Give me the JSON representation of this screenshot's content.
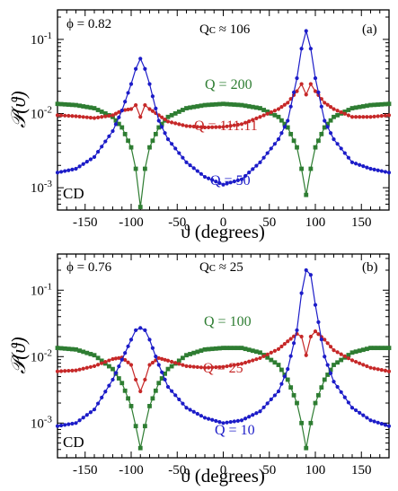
{
  "chart_data": [
    {
      "type": "line",
      "panel_label": "(a)",
      "annotations": {
        "phi": "ϕ = 0.82",
        "qc": "Qᴄ ≈ 106",
        "method": "CD"
      },
      "xlabel": "ϑ (degrees)",
      "ylabel": "𝒫(ϑ)",
      "xlim": [
        -180,
        180
      ],
      "ylog": true,
      "ylim": [
        0.0005,
        0.25
      ],
      "xticks": [
        -150,
        -100,
        -50,
        0,
        50,
        100,
        150
      ],
      "xtick_labels": [
        "-150",
        "-100",
        "-50",
        "0",
        "50",
        "100",
        "150"
      ],
      "yticks": [
        0.001,
        0.01,
        0.1
      ],
      "ytick_labels": [
        "10-3",
        "10-2",
        "10-1"
      ],
      "series": [
        {
          "name": "Q = 200",
          "color": "#2e7d32",
          "marker": "square",
          "x": [
            -180,
            -160,
            -140,
            -120,
            -110,
            -100,
            -95,
            -90,
            -85,
            -80,
            -70,
            -60,
            -40,
            -20,
            0,
            20,
            40,
            60,
            70,
            80,
            85,
            90,
            95,
            100,
            110,
            120,
            140,
            160,
            180
          ],
          "y": [
            0.0135,
            0.013,
            0.0118,
            0.009,
            0.0065,
            0.0035,
            0.0018,
            0.00055,
            0.0018,
            0.0035,
            0.0065,
            0.009,
            0.0118,
            0.013,
            0.0135,
            0.013,
            0.0118,
            0.009,
            0.0065,
            0.0035,
            0.0018,
            0.0008,
            0.0018,
            0.0035,
            0.0065,
            0.009,
            0.0118,
            0.013,
            0.0135
          ]
        },
        {
          "name": "Q = 111.11",
          "color": "#c62828",
          "marker": "circle",
          "x": [
            -180,
            -160,
            -140,
            -120,
            -110,
            -100,
            -95,
            -90,
            -85,
            -80,
            -70,
            -60,
            -40,
            -20,
            0,
            20,
            40,
            60,
            70,
            80,
            85,
            90,
            95,
            100,
            110,
            120,
            140,
            160,
            180
          ],
          "y": [
            0.0095,
            0.0092,
            0.0087,
            0.0095,
            0.011,
            0.0115,
            0.013,
            0.009,
            0.013,
            0.0115,
            0.0095,
            0.0078,
            0.0068,
            0.0065,
            0.0066,
            0.0072,
            0.009,
            0.0115,
            0.014,
            0.02,
            0.025,
            0.018,
            0.025,
            0.02,
            0.014,
            0.0115,
            0.009,
            0.009,
            0.0095
          ]
        },
        {
          "name": "Q = 50",
          "color": "#1c1cc8",
          "marker": "circle",
          "x": [
            -180,
            -160,
            -140,
            -120,
            -110,
            -100,
            -95,
            -90,
            -85,
            -80,
            -70,
            -60,
            -40,
            -20,
            0,
            20,
            40,
            60,
            70,
            80,
            85,
            90,
            95,
            100,
            110,
            120,
            140,
            160,
            180
          ],
          "y": [
            0.0016,
            0.0018,
            0.0026,
            0.0058,
            0.011,
            0.025,
            0.04,
            0.055,
            0.04,
            0.025,
            0.008,
            0.0045,
            0.0022,
            0.0014,
            0.0011,
            0.0013,
            0.0022,
            0.0045,
            0.008,
            0.03,
            0.075,
            0.13,
            0.075,
            0.03,
            0.008,
            0.0045,
            0.0022,
            0.0018,
            0.0016
          ]
        }
      ]
    },
    {
      "type": "line",
      "panel_label": "(b)",
      "annotations": {
        "phi": "ϕ = 0.76",
        "qc": "Qᴄ ≈ 25",
        "method": "CD"
      },
      "xlabel": "ϑ (degrees)",
      "ylabel": "𝒫(ϑ)",
      "xlim": [
        -180,
        180
      ],
      "ylog": true,
      "ylim": [
        0.0003,
        0.35
      ],
      "xticks": [
        -150,
        -100,
        -50,
        0,
        50,
        100,
        150
      ],
      "xtick_labels": [
        "-150",
        "-100",
        "-50",
        "0",
        "50",
        "100",
        "150"
      ],
      "yticks": [
        0.001,
        0.01,
        0.1
      ],
      "ytick_labels": [
        "10-3",
        "10-2",
        "10-1"
      ],
      "series": [
        {
          "name": "Q = 100",
          "color": "#2e7d32",
          "marker": "square",
          "x": [
            -180,
            -160,
            -140,
            -120,
            -110,
            -100,
            -95,
            -90,
            -85,
            -80,
            -70,
            -60,
            -40,
            -20,
            0,
            20,
            40,
            60,
            70,
            80,
            85,
            90,
            95,
            100,
            110,
            120,
            140,
            160,
            180
          ],
          "y": [
            0.0135,
            0.0128,
            0.0105,
            0.0065,
            0.004,
            0.0018,
            0.0009,
            0.00042,
            0.0009,
            0.0018,
            0.004,
            0.0065,
            0.0105,
            0.0128,
            0.0135,
            0.0135,
            0.0115,
            0.0075,
            0.0045,
            0.002,
            0.001,
            0.00042,
            0.001,
            0.002,
            0.0045,
            0.0075,
            0.0115,
            0.0135,
            0.0135
          ]
        },
        {
          "name": "Q = 25",
          "color": "#c62828",
          "marker": "circle",
          "x": [
            -180,
            -160,
            -140,
            -120,
            -110,
            -100,
            -95,
            -90,
            -85,
            -80,
            -70,
            -60,
            -40,
            -20,
            0,
            20,
            40,
            60,
            70,
            80,
            85,
            90,
            95,
            100,
            110,
            120,
            140,
            160,
            180
          ],
          "y": [
            0.006,
            0.0062,
            0.0072,
            0.0092,
            0.0097,
            0.0075,
            0.0045,
            0.003,
            0.0045,
            0.0075,
            0.0095,
            0.0087,
            0.0072,
            0.0068,
            0.007,
            0.0078,
            0.0095,
            0.013,
            0.017,
            0.022,
            0.02,
            0.0105,
            0.02,
            0.024,
            0.018,
            0.0125,
            0.0088,
            0.0068,
            0.006
          ]
        },
        {
          "name": "Q = 10",
          "color": "#1c1cc8",
          "marker": "circle",
          "x": [
            -180,
            -160,
            -140,
            -120,
            -110,
            -100,
            -95,
            -90,
            -85,
            -80,
            -70,
            -60,
            -40,
            -20,
            0,
            20,
            40,
            60,
            70,
            80,
            85,
            90,
            95,
            100,
            110,
            120,
            140,
            160,
            180
          ],
          "y": [
            0.0009,
            0.001,
            0.0016,
            0.0045,
            0.009,
            0.018,
            0.025,
            0.027,
            0.025,
            0.018,
            0.0075,
            0.0035,
            0.0017,
            0.0012,
            0.001,
            0.0011,
            0.0015,
            0.003,
            0.0065,
            0.025,
            0.09,
            0.2,
            0.17,
            0.06,
            0.01,
            0.0042,
            0.0017,
            0.0011,
            0.0009
          ]
        }
      ]
    }
  ]
}
